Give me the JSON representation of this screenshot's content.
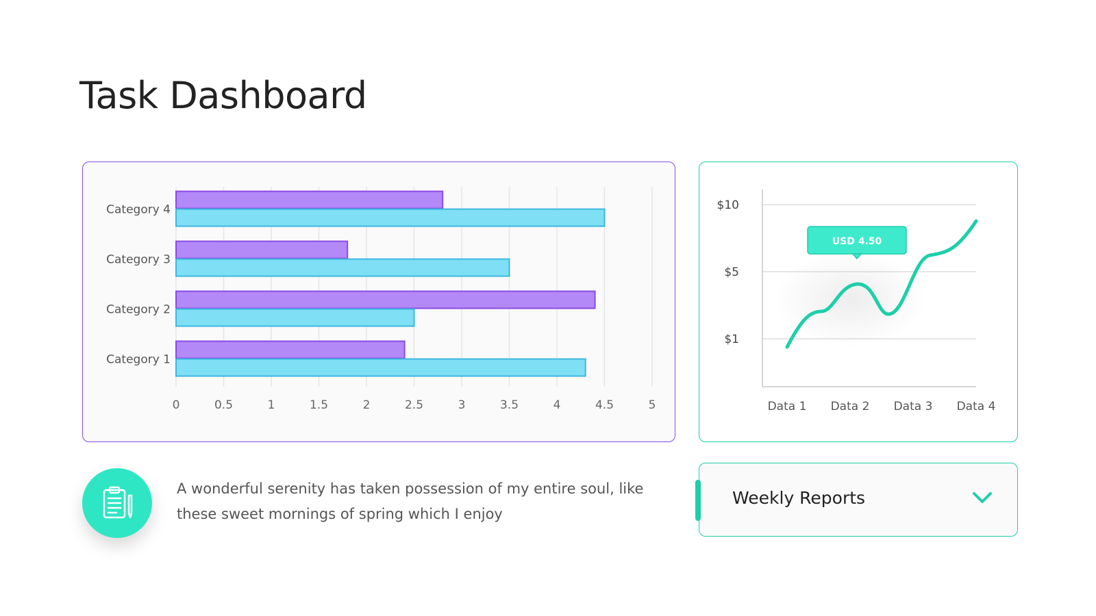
{
  "title": "Task Dashboard",
  "description": "A wonderful serenity has taken possession of my entire soul, like these sweet mornings of spring which I enjoy",
  "dropdown": {
    "label": "Weekly Reports"
  },
  "icons": {
    "clipboard": "clipboard-icon",
    "chevron": "chevron-down-icon"
  },
  "colors": {
    "purple": "#b388f7",
    "purple_border": "#8a4be6",
    "cyan": "#7fdff4",
    "cyan_border": "#3cb7e0",
    "teal": "#1dcfa9",
    "tooltip": "#3debcc"
  },
  "chart_data": [
    {
      "type": "bar",
      "orientation": "horizontal",
      "categories": [
        "Category 1",
        "Category 2",
        "Category 3",
        "Category 4"
      ],
      "series": [
        {
          "values": [
            2.4,
            4.4,
            1.8,
            2.8
          ]
        },
        {
          "values": [
            4.3,
            2.5,
            3.5,
            4.5
          ]
        }
      ],
      "xlim": [
        0,
        5
      ],
      "xticks": [
        "0",
        "0.5",
        "1",
        "1.5",
        "2",
        "2.5",
        "3",
        "3.5",
        "4",
        "4.5",
        "5"
      ],
      "grid": true
    },
    {
      "type": "line",
      "categories": [
        "Data 1",
        "Data 2",
        "Data 3",
        "Data 4"
      ],
      "yticks": [
        "$10",
        "$5",
        "$1"
      ],
      "tooltip": "USD 4.50",
      "grid": true
    }
  ]
}
